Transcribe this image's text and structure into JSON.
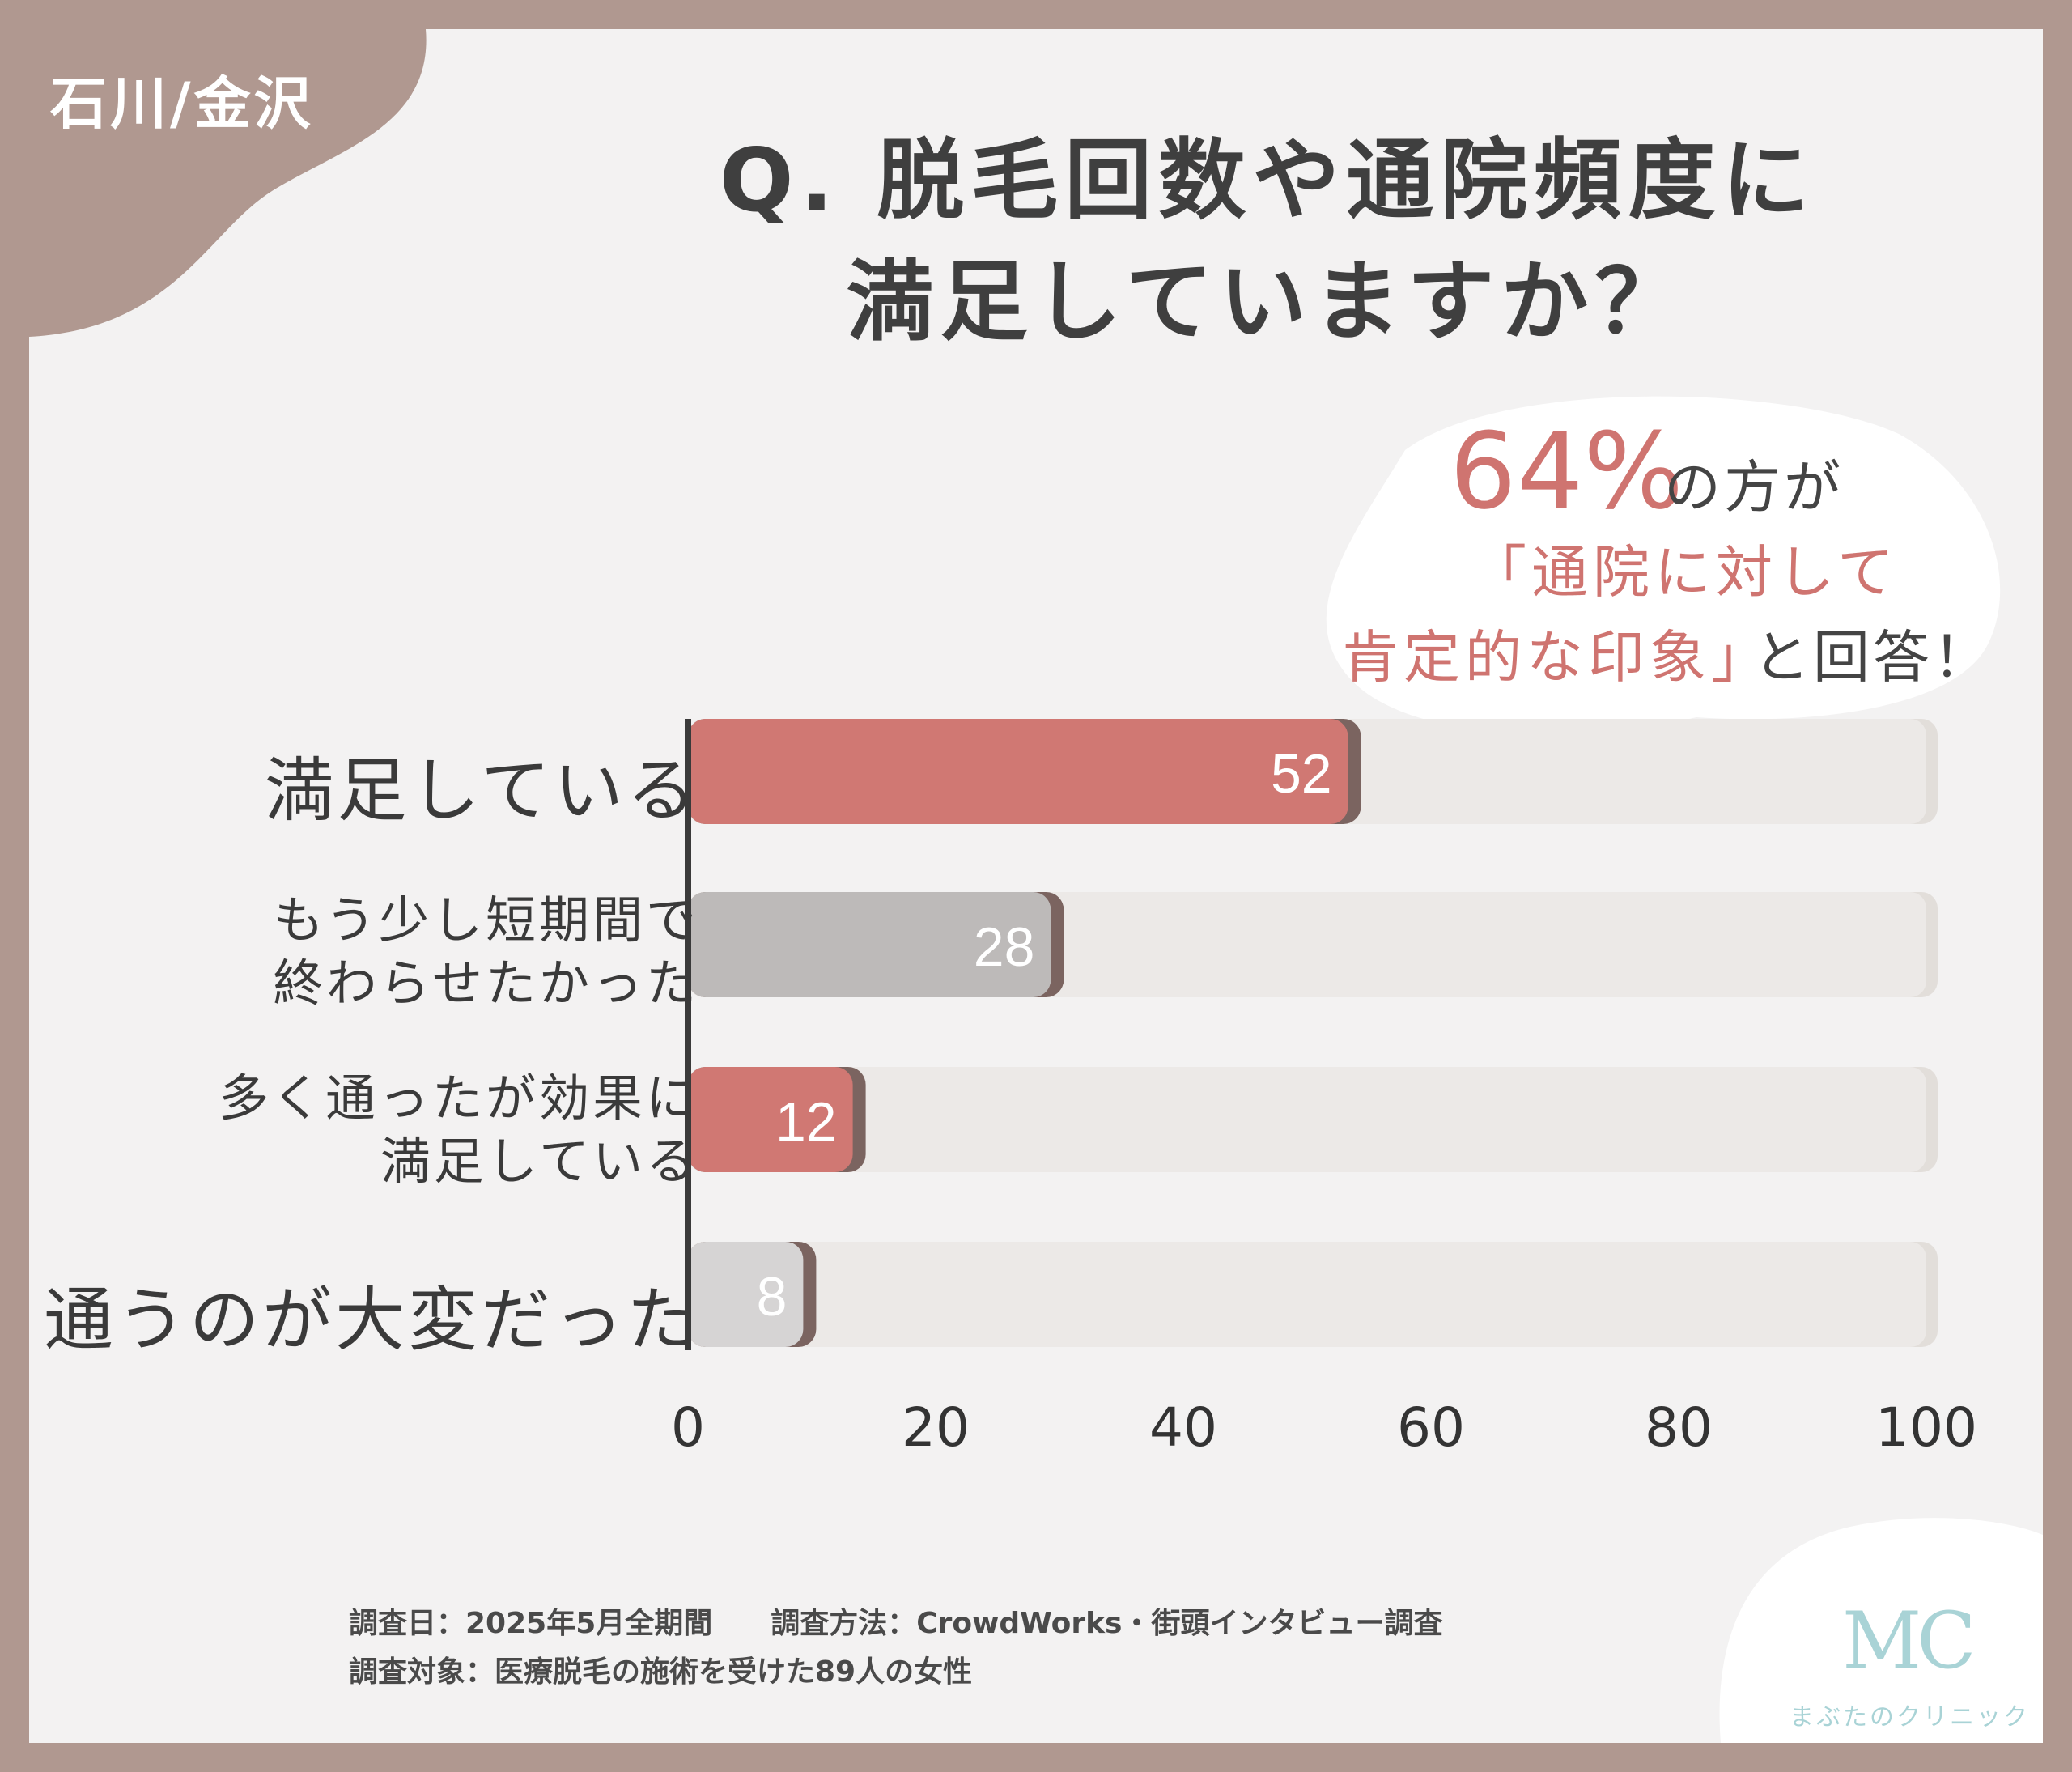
{
  "region_tag": "石川/金沢",
  "title": {
    "line1": "Q. 脱毛回数や通院頻度に",
    "line2": "満足していますか？"
  },
  "callout": {
    "percent": "64%",
    "percent_suffix": "の方が",
    "line2": "「通院に対して",
    "line3_highlight": "肯定的な印象」",
    "line3_rest": "と回答！"
  },
  "chart_data": {
    "type": "bar",
    "orientation": "horizontal",
    "categories": [
      [
        "満足している"
      ],
      [
        "もう少し短期間で",
        "終わらせたかった"
      ],
      [
        "多く通ったが効果に",
        "満足している"
      ],
      [
        "通うのが大変だった"
      ]
    ],
    "values": [
      52,
      28,
      12,
      8
    ],
    "data_labels": [
      "52",
      "28",
      "12",
      "8"
    ],
    "xlim": [
      0,
      100
    ],
    "x_ticks": [
      "0",
      "20",
      "40",
      "60",
      "80",
      "100"
    ],
    "bar_colors": [
      "#d07873",
      "#bdbab9",
      "#d07873",
      "#d6d4d4"
    ],
    "track_color": "#ece9e7",
    "grid": false
  },
  "footer": {
    "line1": "調査日：2025年5月全期間　　調査方法：CrowdWorks・街頭インタビュー調査",
    "line2": "調査対象：医療脱毛の施術を受けた89人の女性"
  },
  "logo": {
    "mark": "MC",
    "name": "まぶたのクリニック"
  },
  "colors": {
    "frame": "#b09890",
    "accent": "#cf7470",
    "logo": "#a9d3d6"
  }
}
